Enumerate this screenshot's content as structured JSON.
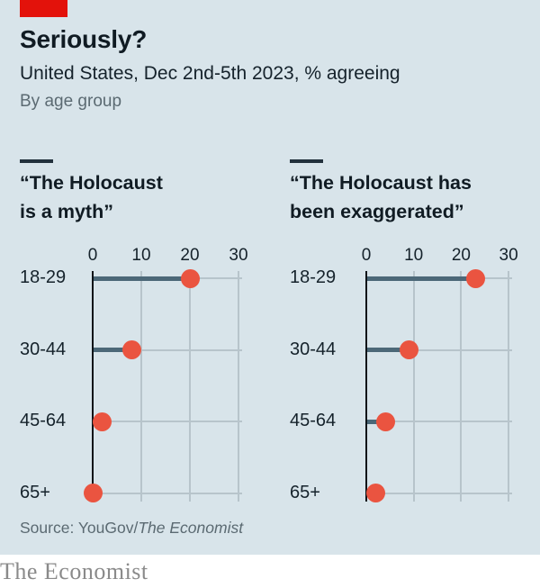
{
  "brand": {
    "red_tab_color": "#e3120b",
    "footer_wordmark": "The Economist"
  },
  "header": {
    "title": "Seriously?",
    "subtitle": "United States, Dec 2nd-5th 2023, % agreeing",
    "byline": "By age group"
  },
  "source": {
    "prefix": "Source: YouGov/",
    "publication": "The Economist"
  },
  "colors": {
    "background": "#d8e4ea",
    "dot": "#ea5440",
    "bar": "#4c6878",
    "gridline": "#b7c4cb",
    "axis": "#0c1318",
    "text_dark": "#101b23",
    "text_gray": "#5b6a72"
  },
  "chart_data": [
    {
      "type": "scatter",
      "title_lines": [
        "“The Holocaust",
        "is a myth”"
      ],
      "categories": [
        "18-29",
        "30-44",
        "45-64",
        "65+"
      ],
      "values": [
        20,
        8,
        2,
        0
      ],
      "xticks": [
        "0",
        "10",
        "20",
        "30"
      ],
      "xlim": [
        0,
        30
      ],
      "grid": true,
      "legend": "none",
      "note": "dot plot with stem bar from 0 to value"
    },
    {
      "type": "scatter",
      "title_lines": [
        "“The Holocaust has",
        "been exaggerated”"
      ],
      "categories": [
        "18-29",
        "30-44",
        "45-64",
        "65+"
      ],
      "values": [
        23,
        9,
        4,
        2
      ],
      "xticks": [
        "0",
        "10",
        "20",
        "30"
      ],
      "xlim": [
        0,
        30
      ],
      "grid": true,
      "legend": "none",
      "note": "dot plot with stem bar from 0 to value"
    }
  ]
}
